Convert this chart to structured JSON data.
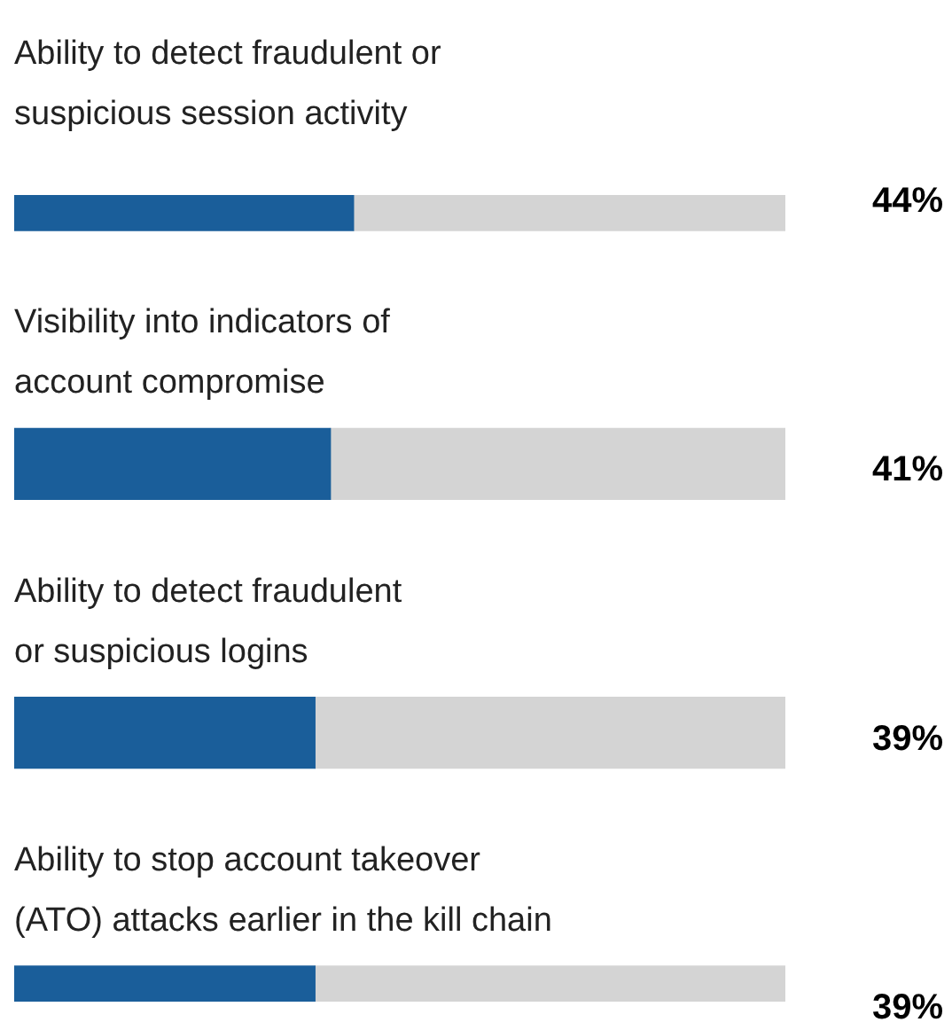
{
  "chart_data": {
    "type": "bar",
    "orientation": "horizontal",
    "stacked": true,
    "categories": [
      "Ability to detect fraudulent or\nsuspicious session activity",
      "Visibility into indicators of\naccount compromise",
      "Ability to detect fraudulent\nor suspicious logins",
      "Ability to stop account takeover\n(ATO) attacks earlier in the kill chain"
    ],
    "series": [
      {
        "color": "#1a5e9a",
        "values": [
          44,
          41,
          39,
          39
        ],
        "value_labels": [
          "44%",
          "41%",
          "39%",
          "39%"
        ]
      },
      {
        "color": "#d4d4d4",
        "values": [
          56,
          59,
          61,
          61
        ]
      }
    ],
    "xlim": [
      0,
      100
    ],
    "tick_labels": false,
    "legend": false
  }
}
